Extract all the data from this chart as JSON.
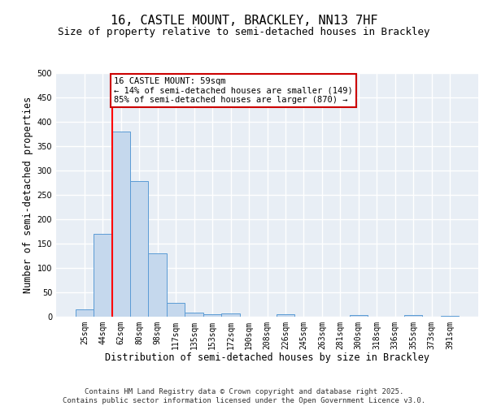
{
  "title_line1": "16, CASTLE MOUNT, BRACKLEY, NN13 7HF",
  "title_line2": "Size of property relative to semi-detached houses in Brackley",
  "xlabel": "Distribution of semi-detached houses by size in Brackley",
  "ylabel": "Number of semi-detached properties",
  "footer_line1": "Contains HM Land Registry data © Crown copyright and database right 2025.",
  "footer_line2": "Contains public sector information licensed under the Open Government Licence v3.0.",
  "bins": [
    "25sqm",
    "44sqm",
    "62sqm",
    "80sqm",
    "98sqm",
    "117sqm",
    "135sqm",
    "153sqm",
    "172sqm",
    "190sqm",
    "208sqm",
    "226sqm",
    "245sqm",
    "263sqm",
    "281sqm",
    "300sqm",
    "318sqm",
    "336sqm",
    "355sqm",
    "373sqm",
    "391sqm"
  ],
  "bar_values": [
    15,
    170,
    380,
    278,
    130,
    28,
    8,
    5,
    7,
    0,
    0,
    5,
    0,
    0,
    0,
    3,
    0,
    0,
    3,
    0,
    2
  ],
  "bar_color": "#c5d8ed",
  "bar_edge_color": "#5b9bd5",
  "property_line_bin_index": 2,
  "annotation_title": "16 CASTLE MOUNT: 59sqm",
  "annotation_line1": "← 14% of semi-detached houses are smaller (149)",
  "annotation_line2": "85% of semi-detached houses are larger (870) →",
  "annotation_box_facecolor": "#ffffff",
  "annotation_box_edgecolor": "#cc0000",
  "ylim": [
    0,
    500
  ],
  "yticks": [
    0,
    50,
    100,
    150,
    200,
    250,
    300,
    350,
    400,
    450,
    500
  ],
  "background_color": "#e8eef5",
  "grid_color": "#ffffff",
  "title_fontsize": 11,
  "subtitle_fontsize": 9,
  "axis_label_fontsize": 8.5,
  "tick_fontsize": 7,
  "footer_fontsize": 6.5,
  "annotation_fontsize": 7.5
}
